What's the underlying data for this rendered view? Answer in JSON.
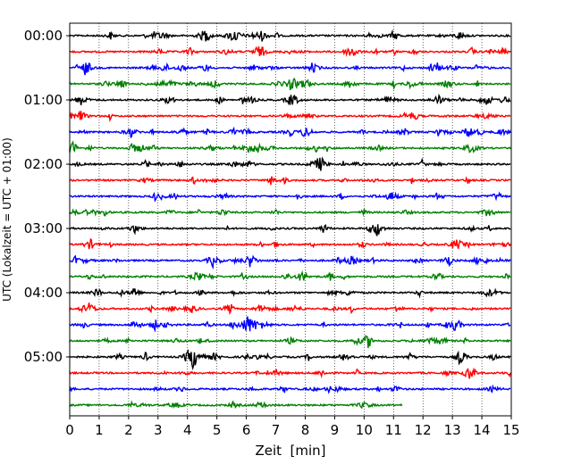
{
  "chart_data": {
    "type": "line",
    "title": "",
    "xlabel": "Zeit  [min]",
    "ylabel": "UTC (Lokalzeit = UTC + 01:00)",
    "xlim": [
      0,
      15
    ],
    "xticks": [
      0,
      1,
      2,
      3,
      4,
      5,
      6,
      7,
      8,
      9,
      10,
      11,
      12,
      13,
      14,
      15
    ],
    "ytick_labels": [
      "00:00",
      "01:00",
      "02:00",
      "03:00",
      "04:00",
      "05:00"
    ],
    "trace_interval_min": 15,
    "trace_count": 24,
    "trace_colors": [
      "#000000",
      "#ff0000",
      "#0000ff",
      "#008000"
    ],
    "last_trace_end_min": 11.3,
    "vertical_grid": "dotted",
    "series_type": "seismogram traces"
  }
}
